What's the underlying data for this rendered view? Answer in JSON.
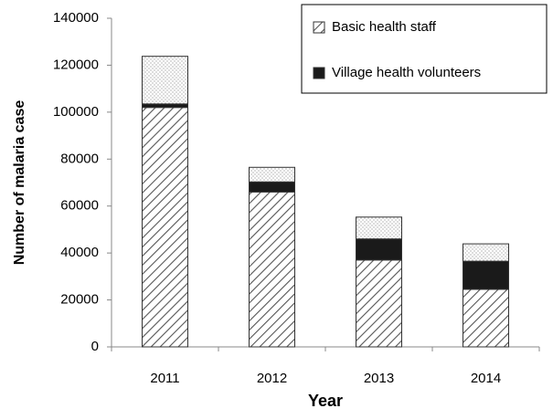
{
  "chart_data": {
    "type": "stacked_bar",
    "x_label": "Year",
    "y_label": "Number of malaria case",
    "categories": [
      "2011",
      "2012",
      "2013",
      "2014"
    ],
    "series": [
      {
        "name": "Basic health staff",
        "color": "#555555",
        "pattern": "hatch",
        "values": [
          102000,
          66000,
          37000,
          24500
        ]
      },
      {
        "name": "Village health volunteers",
        "color": "#1a1a1a",
        "pattern": "solid",
        "values": [
          1500,
          4300,
          9000,
          12000
        ]
      },
      {
        "color": "#888888",
        "pattern": "dots",
        "values": [
          20300,
          6200,
          9300,
          7400
        ]
      }
    ],
    "ylim": [
      0,
      140000
    ],
    "yticks": [
      0,
      20000,
      40000,
      60000,
      80000,
      100000,
      120000,
      140000
    ],
    "legend": "top-right"
  }
}
